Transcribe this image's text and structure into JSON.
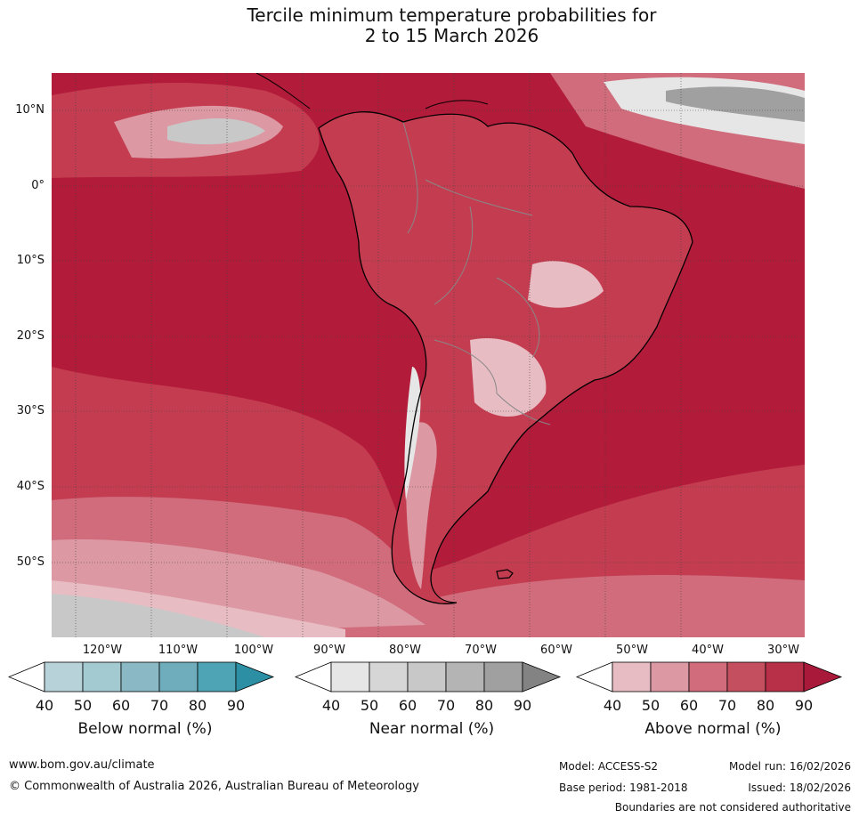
{
  "title": {
    "line1": "Tercile minimum temperature probabilities for",
    "line2": "2 to 15 March 2026"
  },
  "map": {
    "region": "South America",
    "colors": {
      "ocean_above_90": "#b21b3a",
      "above_80": "#c43c50",
      "above_70": "#d06c7c",
      "above_60": "#dc98a3",
      "above_50": "#e8bcc3",
      "near_40": "#e6e6e6",
      "near_60": "#c8c8c8",
      "near_80": "#a0a0a0",
      "near_90": "#8a8a8a",
      "below_40": "#b7d2d9",
      "below_60": "#8ab9c5",
      "coast": "#000000",
      "border": "#888888",
      "graticule": "#444444"
    },
    "lat_labels": [
      "10°N",
      "0°",
      "10°S",
      "20°S",
      "30°S",
      "40°S",
      "50°S"
    ],
    "lon_labels": [
      "120°W",
      "110°W",
      "100°W",
      "90°W",
      "80°W",
      "70°W",
      "60°W",
      "50°W",
      "40°W",
      "30°W"
    ]
  },
  "legends": [
    {
      "title": "Below normal (%)",
      "ticks": [
        "40",
        "50",
        "60",
        "70",
        "80",
        "90"
      ],
      "colors": [
        "#ffffff",
        "#b7d2d9",
        "#a3c9d1",
        "#8ab9c5",
        "#6fadbc",
        "#4ea3b4",
        "#2d8fa3"
      ]
    },
    {
      "title": "Near normal (%)",
      "ticks": [
        "40",
        "50",
        "60",
        "70",
        "80",
        "90"
      ],
      "colors": [
        "#ffffff",
        "#e6e6e6",
        "#d6d6d6",
        "#c8c8c8",
        "#b4b4b4",
        "#a0a0a0",
        "#838383"
      ]
    },
    {
      "title": "Above normal (%)",
      "ticks": [
        "40",
        "50",
        "60",
        "70",
        "80",
        "90"
      ],
      "colors": [
        "#ffffff",
        "#e8bcc3",
        "#dc98a3",
        "#d06c7c",
        "#c4505f",
        "#b83048",
        "#a8193a"
      ]
    }
  ],
  "footer": {
    "website": "www.bom.gov.au/climate",
    "copyright": "© Commonwealth of Australia 2026, Australian Bureau of Meteorology",
    "model": "Model: ACCESS-S2",
    "base_period": "Base period: 1981-2018",
    "model_run": "Model run: 16/02/2026",
    "issued": "Issued: 18/02/2026",
    "disclaimer": "Boundaries are not considered authoritative"
  }
}
